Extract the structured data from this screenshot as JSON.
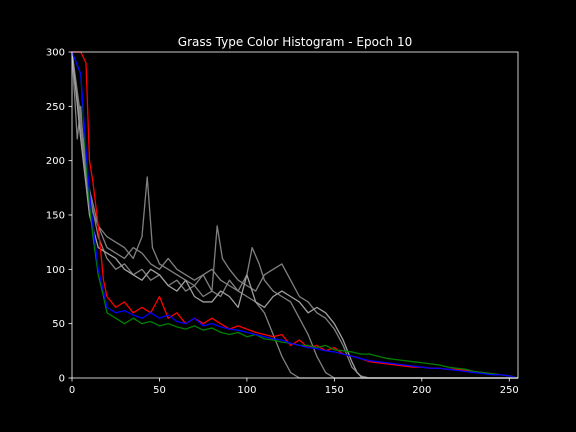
{
  "chart_data": {
    "type": "line",
    "title": "Grass Type Color Histogram - Epoch 10",
    "xlabel": "",
    "ylabel": "",
    "xlim": [
      0,
      255
    ],
    "ylim": [
      0,
      300
    ],
    "xticks": [
      0,
      50,
      100,
      150,
      200,
      250
    ],
    "yticks": [
      0,
      50,
      100,
      150,
      200,
      250,
      300
    ],
    "grid": false,
    "background": "#000000",
    "series": [
      {
        "color": "#808080",
        "points": [
          [
            0,
            300
          ],
          [
            3,
            220
          ],
          [
            5,
            250
          ],
          [
            7,
            200
          ],
          [
            9,
            180
          ],
          [
            12,
            160
          ],
          [
            15,
            140
          ],
          [
            20,
            120
          ],
          [
            25,
            115
          ],
          [
            30,
            110
          ],
          [
            35,
            120
          ],
          [
            40,
            115
          ],
          [
            45,
            105
          ],
          [
            50,
            100
          ],
          [
            55,
            110
          ],
          [
            60,
            100
          ],
          [
            65,
            95
          ],
          [
            70,
            90
          ],
          [
            75,
            95
          ],
          [
            80,
            100
          ],
          [
            85,
            90
          ],
          [
            90,
            85
          ],
          [
            95,
            80
          ],
          [
            100,
            75
          ],
          [
            105,
            70
          ],
          [
            110,
            60
          ],
          [
            115,
            40
          ],
          [
            120,
            20
          ],
          [
            125,
            5
          ],
          [
            130,
            0
          ],
          [
            255,
            0
          ]
        ]
      },
      {
        "color": "#808080",
        "points": [
          [
            0,
            300
          ],
          [
            5,
            230
          ],
          [
            10,
            160
          ],
          [
            15,
            140
          ],
          [
            20,
            130
          ],
          [
            25,
            125
          ],
          [
            30,
            120
          ],
          [
            35,
            110
          ],
          [
            40,
            130
          ],
          [
            43,
            185
          ],
          [
            46,
            120
          ],
          [
            50,
            105
          ],
          [
            55,
            100
          ],
          [
            60,
            95
          ],
          [
            65,
            90
          ],
          [
            70,
            85
          ],
          [
            75,
            95
          ],
          [
            80,
            80
          ],
          [
            85,
            75
          ],
          [
            90,
            90
          ],
          [
            95,
            80
          ],
          [
            100,
            95
          ],
          [
            103,
            120
          ],
          [
            107,
            105
          ],
          [
            110,
            90
          ],
          [
            115,
            80
          ],
          [
            120,
            75
          ],
          [
            125,
            70
          ],
          [
            130,
            55
          ],
          [
            135,
            40
          ],
          [
            140,
            20
          ],
          [
            145,
            5
          ],
          [
            150,
            0
          ],
          [
            255,
            0
          ]
        ]
      },
      {
        "color": "#808080",
        "points": [
          [
            0,
            300
          ],
          [
            5,
            240
          ],
          [
            10,
            170
          ],
          [
            15,
            130
          ],
          [
            20,
            110
          ],
          [
            25,
            100
          ],
          [
            30,
            105
          ],
          [
            35,
            95
          ],
          [
            40,
            100
          ],
          [
            45,
            90
          ],
          [
            50,
            95
          ],
          [
            55,
            85
          ],
          [
            60,
            90
          ],
          [
            65,
            80
          ],
          [
            70,
            85
          ],
          [
            75,
            75
          ],
          [
            80,
            80
          ],
          [
            83,
            140
          ],
          [
            86,
            110
          ],
          [
            90,
            100
          ],
          [
            95,
            90
          ],
          [
            100,
            85
          ],
          [
            105,
            80
          ],
          [
            110,
            95
          ],
          [
            115,
            100
          ],
          [
            120,
            105
          ],
          [
            125,
            90
          ],
          [
            130,
            75
          ],
          [
            135,
            70
          ],
          [
            140,
            60
          ],
          [
            145,
            55
          ],
          [
            150,
            45
          ],
          [
            155,
            30
          ],
          [
            160,
            10
          ],
          [
            165,
            2
          ],
          [
            170,
            0
          ],
          [
            255,
            0
          ]
        ]
      },
      {
        "color": "#a0a0a0",
        "points": [
          [
            0,
            300
          ],
          [
            5,
            220
          ],
          [
            10,
            150
          ],
          [
            15,
            120
          ],
          [
            20,
            115
          ],
          [
            25,
            110
          ],
          [
            30,
            100
          ],
          [
            35,
            95
          ],
          [
            40,
            90
          ],
          [
            45,
            100
          ],
          [
            50,
            95
          ],
          [
            55,
            85
          ],
          [
            60,
            80
          ],
          [
            65,
            90
          ],
          [
            70,
            75
          ],
          [
            75,
            70
          ],
          [
            80,
            70
          ],
          [
            85,
            80
          ],
          [
            90,
            75
          ],
          [
            95,
            65
          ],
          [
            100,
            95
          ],
          [
            105,
            70
          ],
          [
            110,
            65
          ],
          [
            115,
            75
          ],
          [
            120,
            80
          ],
          [
            125,
            75
          ],
          [
            130,
            70
          ],
          [
            135,
            60
          ],
          [
            140,
            65
          ],
          [
            145,
            60
          ],
          [
            150,
            50
          ],
          [
            155,
            35
          ],
          [
            160,
            15
          ],
          [
            163,
            5
          ],
          [
            166,
            0
          ],
          [
            255,
            0
          ]
        ]
      },
      {
        "color": "#ff0000",
        "points": [
          [
            0,
            300
          ],
          [
            5,
            300
          ],
          [
            8,
            290
          ],
          [
            10,
            200
          ],
          [
            12,
            180
          ],
          [
            15,
            140
          ],
          [
            18,
            90
          ],
          [
            20,
            75
          ],
          [
            25,
            65
          ],
          [
            30,
            70
          ],
          [
            35,
            60
          ],
          [
            40,
            65
          ],
          [
            45,
            60
          ],
          [
            50,
            75
          ],
          [
            55,
            55
          ],
          [
            60,
            60
          ],
          [
            65,
            50
          ],
          [
            70,
            55
          ],
          [
            75,
            50
          ],
          [
            80,
            55
          ],
          [
            85,
            50
          ],
          [
            90,
            45
          ],
          [
            95,
            48
          ],
          [
            100,
            45
          ],
          [
            105,
            42
          ],
          [
            110,
            40
          ],
          [
            115,
            38
          ],
          [
            120,
            40
          ],
          [
            125,
            30
          ],
          [
            130,
            35
          ],
          [
            135,
            28
          ],
          [
            140,
            30
          ],
          [
            145,
            25
          ],
          [
            150,
            28
          ],
          [
            155,
            22
          ],
          [
            160,
            20
          ],
          [
            165,
            18
          ],
          [
            170,
            15
          ],
          [
            175,
            14
          ],
          [
            180,
            13
          ],
          [
            185,
            12
          ],
          [
            190,
            11
          ],
          [
            195,
            10
          ],
          [
            200,
            10
          ],
          [
            205,
            9
          ],
          [
            210,
            9
          ],
          [
            215,
            8
          ],
          [
            220,
            8
          ],
          [
            225,
            7
          ],
          [
            230,
            6
          ],
          [
            235,
            5
          ],
          [
            240,
            4
          ],
          [
            245,
            3
          ],
          [
            250,
            2
          ],
          [
            253,
            1
          ]
        ]
      },
      {
        "color": "#008000",
        "points": [
          [
            0,
            300
          ],
          [
            5,
            280
          ],
          [
            8,
            200
          ],
          [
            10,
            160
          ],
          [
            12,
            130
          ],
          [
            15,
            95
          ],
          [
            18,
            75
          ],
          [
            20,
            60
          ],
          [
            25,
            55
          ],
          [
            30,
            50
          ],
          [
            35,
            55
          ],
          [
            40,
            50
          ],
          [
            45,
            52
          ],
          [
            50,
            48
          ],
          [
            55,
            50
          ],
          [
            60,
            47
          ],
          [
            65,
            45
          ],
          [
            70,
            48
          ],
          [
            75,
            44
          ],
          [
            80,
            46
          ],
          [
            85,
            42
          ],
          [
            90,
            40
          ],
          [
            95,
            42
          ],
          [
            100,
            38
          ],
          [
            105,
            40
          ],
          [
            110,
            36
          ],
          [
            115,
            35
          ],
          [
            120,
            33
          ],
          [
            125,
            32
          ],
          [
            130,
            30
          ],
          [
            135,
            30
          ],
          [
            140,
            28
          ],
          [
            145,
            30
          ],
          [
            150,
            26
          ],
          [
            155,
            25
          ],
          [
            160,
            24
          ],
          [
            165,
            22
          ],
          [
            170,
            22
          ],
          [
            175,
            20
          ],
          [
            180,
            18
          ],
          [
            185,
            17
          ],
          [
            190,
            16
          ],
          [
            195,
            15
          ],
          [
            200,
            14
          ],
          [
            205,
            13
          ],
          [
            210,
            12
          ],
          [
            215,
            10
          ],
          [
            220,
            9
          ],
          [
            225,
            8
          ],
          [
            230,
            6
          ],
          [
            235,
            5
          ],
          [
            240,
            4
          ],
          [
            245,
            3
          ],
          [
            250,
            2
          ],
          [
            253,
            1
          ]
        ]
      },
      {
        "color": "#0000ff",
        "points": [
          [
            0,
            300
          ],
          [
            5,
            280
          ],
          [
            8,
            210
          ],
          [
            10,
            170
          ],
          [
            12,
            140
          ],
          [
            15,
            100
          ],
          [
            18,
            80
          ],
          [
            20,
            65
          ],
          [
            25,
            60
          ],
          [
            30,
            62
          ],
          [
            35,
            58
          ],
          [
            40,
            55
          ],
          [
            45,
            60
          ],
          [
            50,
            55
          ],
          [
            55,
            58
          ],
          [
            60,
            52
          ],
          [
            65,
            50
          ],
          [
            70,
            55
          ],
          [
            75,
            48
          ],
          [
            80,
            50
          ],
          [
            85,
            47
          ],
          [
            90,
            45
          ],
          [
            95,
            44
          ],
          [
            100,
            42
          ],
          [
            105,
            40
          ],
          [
            110,
            38
          ],
          [
            115,
            36
          ],
          [
            120,
            35
          ],
          [
            125,
            32
          ],
          [
            130,
            30
          ],
          [
            135,
            28
          ],
          [
            140,
            27
          ],
          [
            145,
            25
          ],
          [
            150,
            24
          ],
          [
            155,
            22
          ],
          [
            160,
            20
          ],
          [
            165,
            18
          ],
          [
            170,
            16
          ],
          [
            175,
            15
          ],
          [
            180,
            14
          ],
          [
            185,
            13
          ],
          [
            190,
            12
          ],
          [
            195,
            11
          ],
          [
            200,
            10
          ],
          [
            205,
            9
          ],
          [
            210,
            9
          ],
          [
            215,
            8
          ],
          [
            220,
            7
          ],
          [
            225,
            6
          ],
          [
            230,
            5
          ],
          [
            235,
            4
          ],
          [
            240,
            3
          ],
          [
            245,
            3
          ],
          [
            250,
            2
          ],
          [
            253,
            1
          ]
        ]
      }
    ]
  }
}
